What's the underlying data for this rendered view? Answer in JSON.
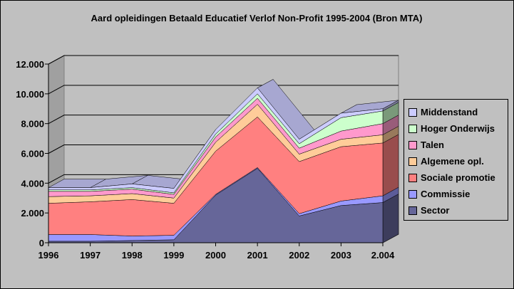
{
  "chart_data": {
    "type": "area",
    "stacked": true,
    "three_d": true,
    "title": "Aard opleidingen Betaald Educatief Verlof Non-Profit 1995-2004 (Bron MTA)",
    "categories": [
      "1996",
      "1997",
      "1998",
      "1999",
      "2000",
      "2001",
      "2002",
      "2003",
      "2.004"
    ],
    "ylim": [
      0,
      12000
    ],
    "yticks": [
      "0",
      "2.000",
      "4.000",
      "6.000",
      "8.000",
      "10.000",
      "12.000"
    ],
    "grid": true,
    "legend_position": "right",
    "series": [
      {
        "name": "Sector",
        "color": "#666699",
        "values": [
          100,
          100,
          150,
          200,
          3200,
          5000,
          1800,
          2500,
          2700
        ]
      },
      {
        "name": "Commissie",
        "color": "#9999ff",
        "values": [
          450,
          450,
          300,
          300,
          50,
          50,
          150,
          300,
          450
        ]
      },
      {
        "name": "Sociale promotie",
        "color": "#ff8080",
        "values": [
          2100,
          2200,
          2450,
          2150,
          2900,
          3400,
          3500,
          3650,
          3550
        ]
      },
      {
        "name": "Algemene opl.",
        "color": "#ffcc99",
        "values": [
          450,
          400,
          400,
          350,
          600,
          850,
          500,
          500,
          550
        ]
      },
      {
        "name": "Talen",
        "color": "#ff99cc",
        "values": [
          350,
          300,
          300,
          250,
          350,
          400,
          400,
          550,
          750
        ]
      },
      {
        "name": "Hoger Onderwijs",
        "color": "#ccffcc",
        "values": [
          100,
          100,
          100,
          100,
          200,
          300,
          300,
          900,
          850
        ]
      },
      {
        "name": "Middenstand",
        "color": "#ccccff",
        "values": [
          150,
          150,
          250,
          300,
          300,
          400,
          300,
          300,
          150
        ]
      }
    ]
  }
}
